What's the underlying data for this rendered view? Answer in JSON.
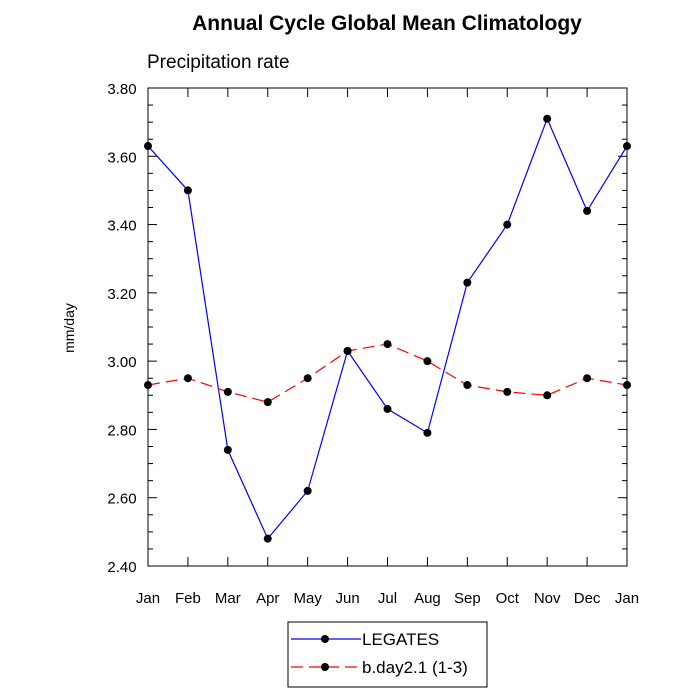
{
  "chart_data": {
    "type": "line",
    "title": "Annual Cycle Global Mean Climatology",
    "subtitle": "Precipitation rate",
    "xlabel": "",
    "ylabel": "mm/day",
    "categories": [
      "Jan",
      "Feb",
      "Mar",
      "Apr",
      "May",
      "Jun",
      "Jul",
      "Aug",
      "Sep",
      "Oct",
      "Nov",
      "Dec",
      "Jan"
    ],
    "ylim": [
      2.4,
      3.8
    ],
    "yticks": [
      "2.40",
      "2.60",
      "2.80",
      "3.00",
      "3.20",
      "3.40",
      "3.60",
      "3.80"
    ],
    "ytick_values": [
      2.4,
      2.6,
      2.8,
      3.0,
      3.2,
      3.4,
      3.6,
      3.8
    ],
    "grid": false,
    "legend_position": "bottom-center",
    "series": [
      {
        "name": "LEGATES",
        "color": "#0000ff",
        "line_style": "solid",
        "marker": "circle",
        "values": [
          3.63,
          3.5,
          2.74,
          2.48,
          2.62,
          3.03,
          2.86,
          2.79,
          3.23,
          3.4,
          3.71,
          3.44,
          3.63
        ]
      },
      {
        "name": "b.day2.1 (1-3)",
        "color": "#ff0000",
        "line_style": "dashed",
        "marker": "circle",
        "values": [
          2.93,
          2.95,
          2.91,
          2.88,
          2.95,
          3.03,
          3.05,
          3.0,
          2.93,
          2.91,
          2.9,
          2.95,
          2.93
        ]
      }
    ]
  }
}
